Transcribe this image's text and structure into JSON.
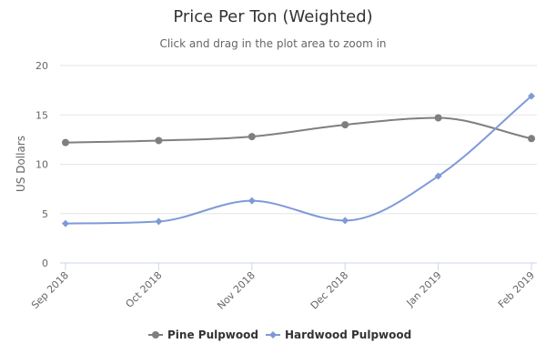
{
  "chart_data": {
    "type": "line",
    "title": "Price Per Ton (Weighted)",
    "subtitle": "Click and drag in the plot area to zoom in",
    "ylabel": "US Dollars",
    "xlabel": "",
    "categories": [
      "Sep 2018",
      "Oct 2018",
      "Nov 2018",
      "Dec 2018",
      "Jan 2019",
      "Feb 2019"
    ],
    "ylim": [
      0,
      20
    ],
    "yticks": [
      "0",
      "5",
      "10",
      "15",
      "20"
    ],
    "grid": true,
    "legend_position": "bottom-center",
    "smooth": true,
    "series": [
      {
        "name": "Pine Pulpwood",
        "values": [
          12.2,
          12.4,
          12.8,
          14.0,
          14.7,
          12.6
        ],
        "color": "#7f7f7f",
        "marker": "circle"
      },
      {
        "name": "Hardwood Pulpwood",
        "values": [
          4.0,
          4.2,
          6.3,
          4.3,
          8.8,
          16.9
        ],
        "color": "#7e9ad6",
        "marker": "diamond"
      }
    ]
  }
}
